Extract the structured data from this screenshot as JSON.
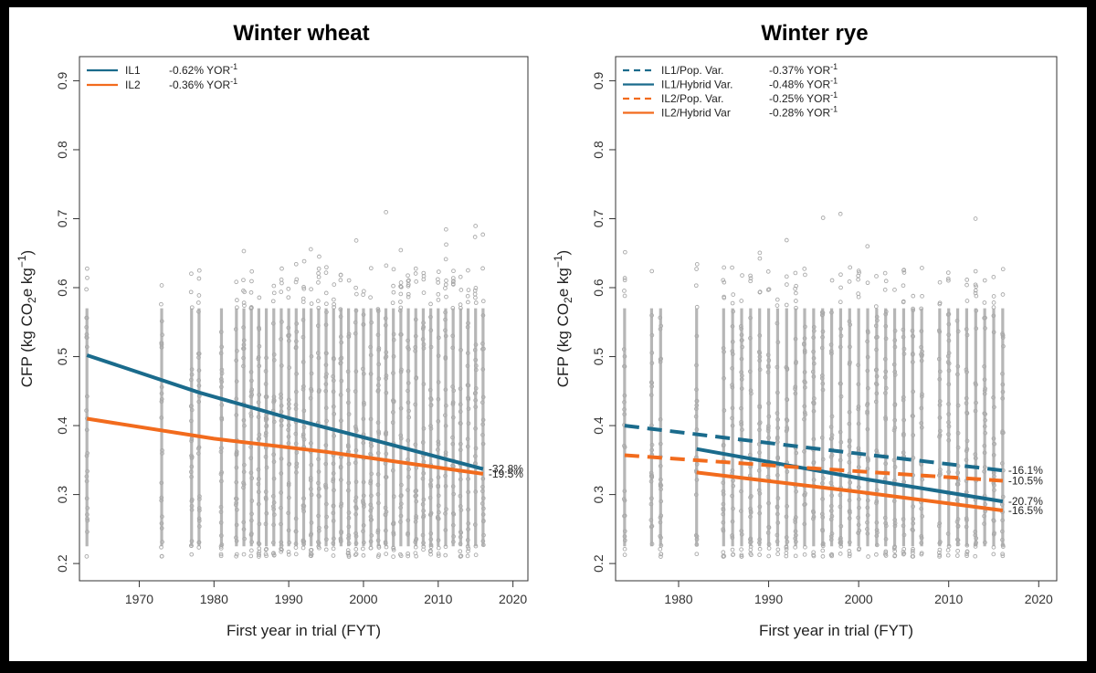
{
  "chart_data": [
    {
      "type": "scatter",
      "title": "Winter wheat",
      "xlabel": "First year in trial (FYT)",
      "ylabel": "CFP (kg CO2e kg-1)",
      "ylabel_parts": {
        "pre": "CFP (kg CO",
        "sub": "2",
        "mid": "e kg",
        "sup": "−1",
        "post": ")"
      },
      "xlim": [
        1962,
        2022
      ],
      "ylim": [
        0.175,
        0.935
      ],
      "xticks": [
        1970,
        1980,
        1990,
        2000,
        2010,
        2020
      ],
      "yticks": [
        0.2,
        0.3,
        0.4,
        0.5,
        0.6,
        0.7,
        0.8,
        0.9
      ],
      "scatter_color": "#a9a9a9",
      "scatter_years": [
        1963,
        1973,
        1977,
        1978,
        1981,
        1983,
        1984,
        1985,
        1986,
        1987,
        1988,
        1989,
        1990,
        1991,
        1992,
        1993,
        1994,
        1995,
        1996,
        1997,
        1998,
        1999,
        2000,
        2001,
        2002,
        2003,
        2004,
        2005,
        2006,
        2007,
        2008,
        2009,
        2010,
        2011,
        2012,
        2013,
        2014,
        2015,
        2016
      ],
      "series": [
        {
          "name": "IL1",
          "rate": "-0.62% YOR",
          "rate_sup": "-1",
          "color": "#1a6b8c",
          "dashed": false,
          "x": [
            1963,
            1978,
            1990,
            2000,
            2016
          ],
          "y": [
            0.502,
            0.448,
            0.411,
            0.383,
            0.337
          ],
          "end_label": "-32.8%"
        },
        {
          "name": "IL2",
          "rate": "-0.36% YOR",
          "rate_sup": "-1",
          "color": "#f26b1d",
          "dashed": false,
          "x": [
            1963,
            1980,
            1995,
            2016
          ],
          "y": [
            0.41,
            0.381,
            0.362,
            0.33
          ],
          "end_label": "-19.5%"
        }
      ]
    },
    {
      "type": "scatter",
      "title": "Winter rye",
      "xlabel": "First year in trial (FYT)",
      "ylabel": "CFP (kg CO2e kg-1)",
      "ylabel_parts": {
        "pre": "CFP (kg CO",
        "sub": "2",
        "mid": "e kg",
        "sup": "−1",
        "post": ")"
      },
      "xlim": [
        1973,
        2022
      ],
      "ylim": [
        0.175,
        0.935
      ],
      "xticks": [
        1980,
        1990,
        2000,
        2010,
        2020
      ],
      "yticks": [
        0.2,
        0.3,
        0.4,
        0.5,
        0.6,
        0.7,
        0.8,
        0.9
      ],
      "scatter_color": "#a9a9a9",
      "scatter_years": [
        1974,
        1977,
        1978,
        1982,
        1985,
        1986,
        1987,
        1988,
        1989,
        1990,
        1991,
        1992,
        1993,
        1994,
        1995,
        1996,
        1997,
        1998,
        1999,
        2000,
        2001,
        2002,
        2003,
        2004,
        2005,
        2006,
        2007,
        2009,
        2010,
        2011,
        2012,
        2013,
        2014,
        2015,
        2016
      ],
      "series": [
        {
          "name": "IL1/Pop. Var.",
          "rate": "-0.37% YOR",
          "rate_sup": "-1",
          "color": "#1a6b8c",
          "dashed": true,
          "x": [
            1974,
            1995,
            2016
          ],
          "y": [
            0.4,
            0.367,
            0.335
          ],
          "end_label": "-16.1%"
        },
        {
          "name": "IL1/Hybrid Var.",
          "rate": "-0.48% YOR",
          "rate_sup": "-1",
          "color": "#1a6b8c",
          "dashed": false,
          "x": [
            1982,
            2000,
            2016
          ],
          "y": [
            0.366,
            0.324,
            0.29
          ],
          "end_label": "-20.7%"
        },
        {
          "name": "IL2/Pop. Var.",
          "rate": "-0.25% YOR",
          "rate_sup": "-1",
          "color": "#f26b1d",
          "dashed": true,
          "x": [
            1974,
            1995,
            2016
          ],
          "y": [
            0.357,
            0.338,
            0.32
          ],
          "end_label": "-10.5%"
        },
        {
          "name": "IL2/Hybrid Var",
          "rate": "-0.28% YOR",
          "rate_sup": "-1",
          "color": "#f26b1d",
          "dashed": false,
          "x": [
            1982,
            2000,
            2016
          ],
          "y": [
            0.332,
            0.304,
            0.277
          ],
          "end_label": "-16.5%"
        }
      ]
    }
  ]
}
